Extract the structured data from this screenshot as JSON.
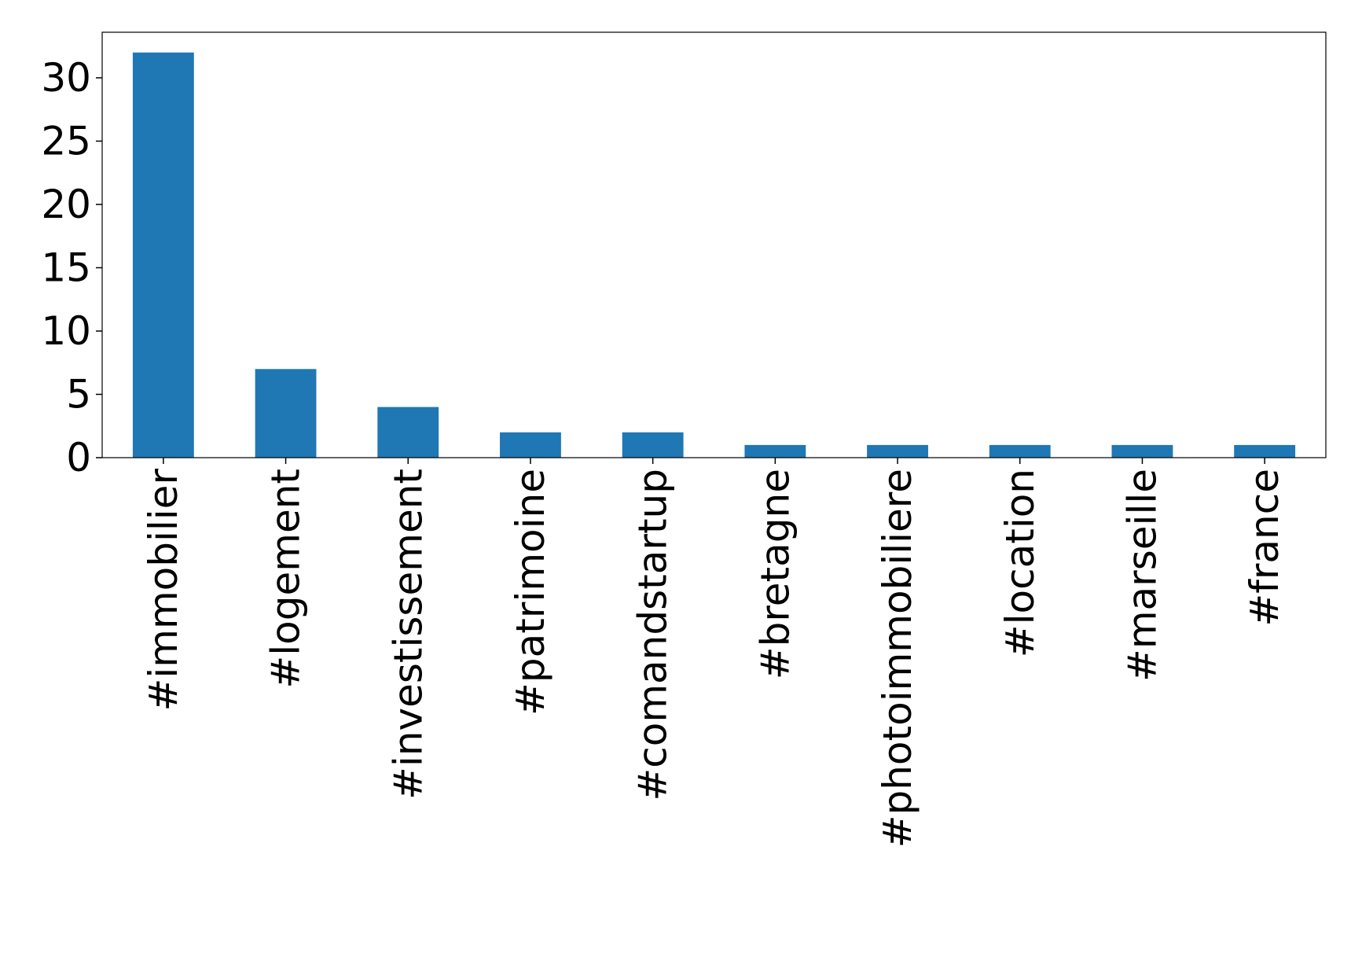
{
  "chart_data": {
    "type": "bar",
    "categories": [
      "#immobilier",
      "#logement",
      "#investissement",
      "#patrimoine",
      "#comandstartup",
      "#bretagne",
      "#photoimmobiliere",
      "#location",
      "#marseille",
      "#france"
    ],
    "values": [
      32,
      7,
      4,
      2,
      2,
      1,
      1,
      1,
      1,
      1
    ],
    "color": "#1f77b4",
    "ylim": [
      0,
      33.6
    ],
    "yticks": [
      0,
      5,
      10,
      15,
      20,
      25,
      30
    ],
    "grid": false
  }
}
